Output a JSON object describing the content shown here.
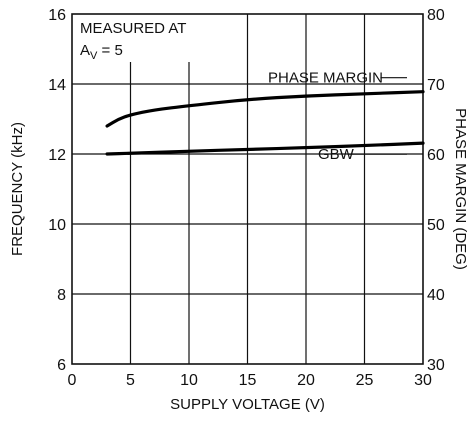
{
  "chart_data": {
    "type": "line",
    "xlabel": "SUPPLY VOLTAGE (V)",
    "ylabel_left": "FREQUENCY (kHz)",
    "ylabel_right": "PHASE MARGIN (DEG)",
    "xlim": [
      0,
      30
    ],
    "ylim_left": [
      6,
      16
    ],
    "ylim_right": [
      30,
      80
    ],
    "x_ticks": [
      0,
      5,
      10,
      15,
      20,
      25,
      30
    ],
    "y_ticks_left": [
      6,
      8,
      10,
      12,
      14,
      16
    ],
    "y_ticks_right": [
      30,
      40,
      50,
      60,
      70,
      80
    ],
    "grid": true,
    "annotation": {
      "line1": "MEASURED AT",
      "line2_main": "A",
      "line2_sub": "V",
      "line2_tail": " = 5"
    },
    "series": [
      {
        "name": "PHASE MARGIN",
        "axis": "right",
        "x": [
          3,
          4,
          5,
          7,
          10,
          15,
          20,
          25,
          30
        ],
        "y": [
          64.0,
          65.0,
          65.6,
          66.3,
          66.9,
          67.8,
          68.3,
          68.6,
          68.9
        ]
      },
      {
        "name": "GBW",
        "axis": "left",
        "x": [
          3,
          5,
          10,
          15,
          20,
          25,
          30
        ],
        "y": [
          12.0,
          12.02,
          12.08,
          12.13,
          12.18,
          12.24,
          12.31
        ]
      }
    ]
  }
}
